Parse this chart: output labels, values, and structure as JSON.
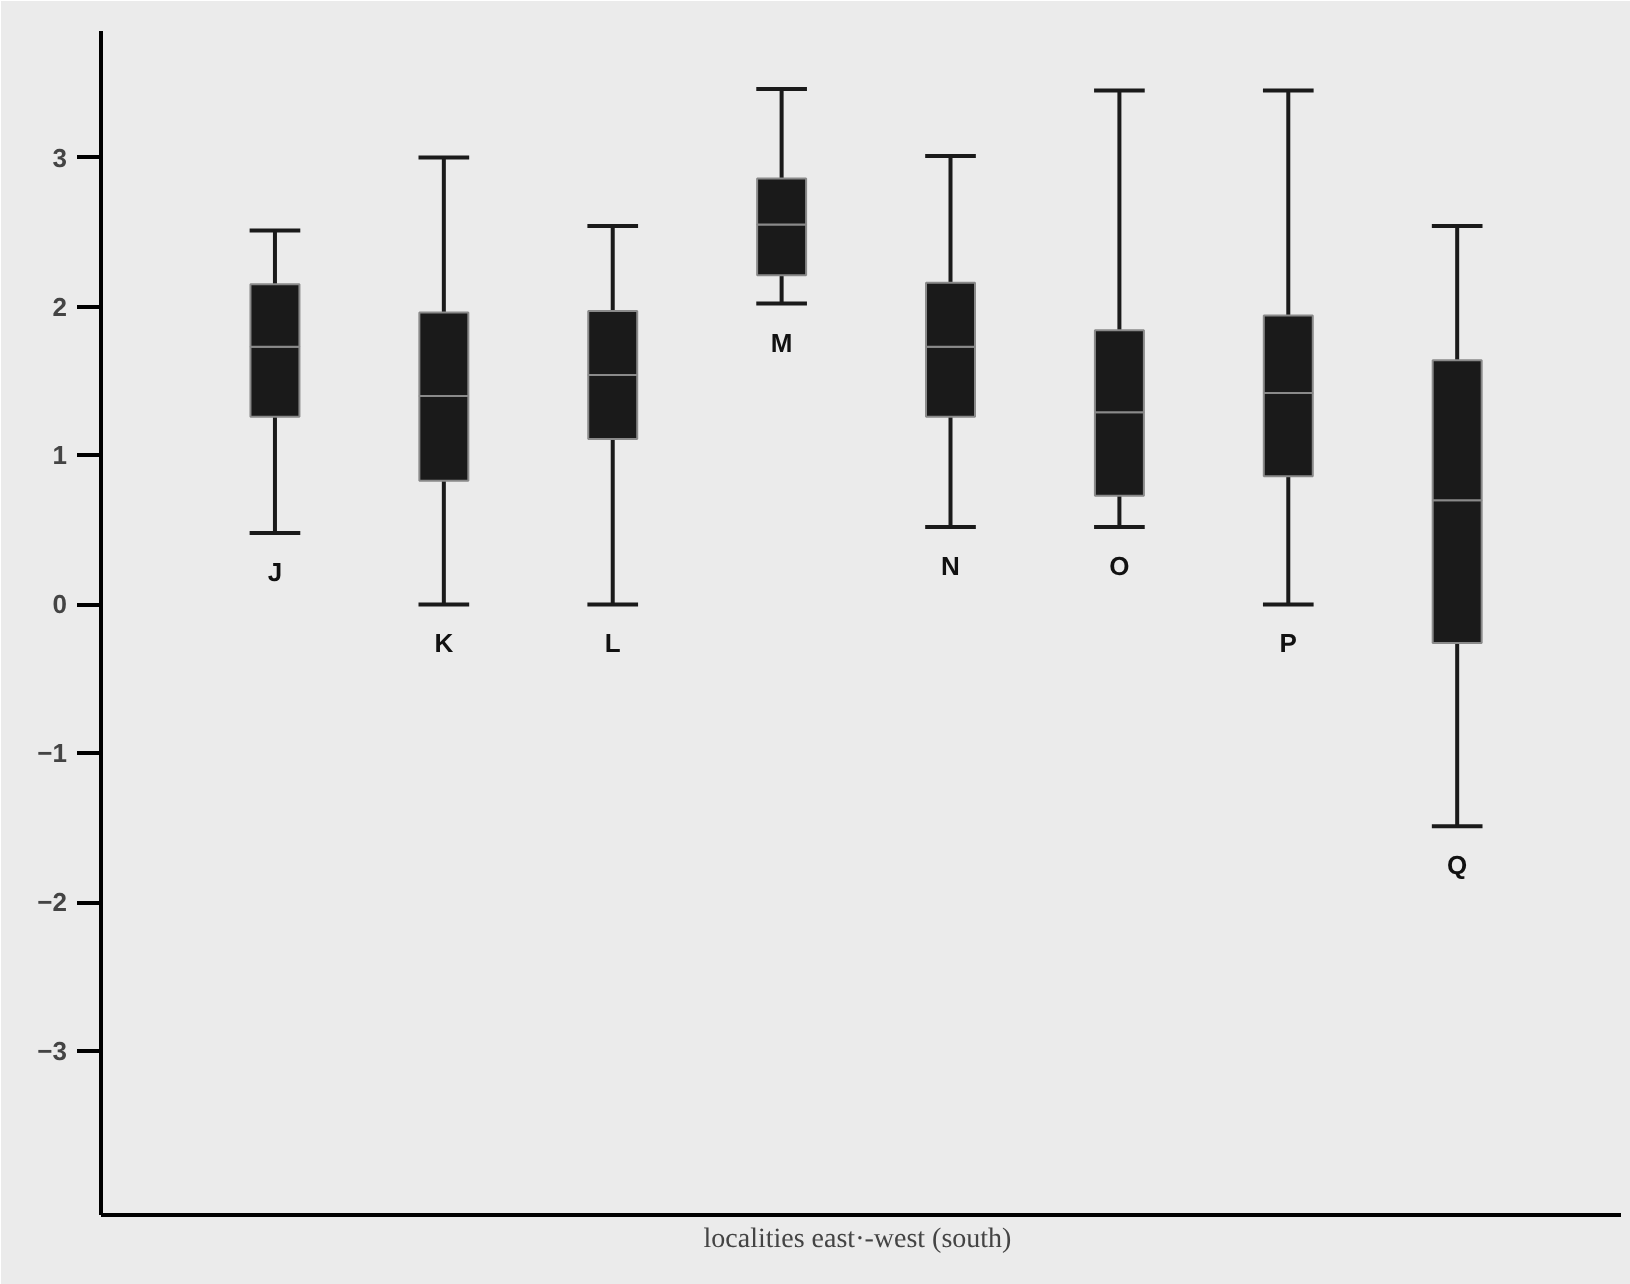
{
  "chart_data": {
    "type": "box",
    "xlabel": "localities east·-west  (south)",
    "categories": [
      "J",
      "K",
      "L",
      "M",
      "N",
      "O",
      "P",
      "Q"
    ],
    "color": "#1a1a1a",
    "grid": false,
    "ylim": [
      -4.1,
      3.85
    ],
    "yticks": [
      -3,
      -2,
      -1,
      0,
      1,
      2,
      3
    ],
    "boxes": [
      {
        "low": 0.48,
        "q1": 1.26,
        "median": 1.73,
        "q3": 2.15,
        "high": 2.51
      },
      {
        "low": 0,
        "q1": 0.83,
        "median": 1.4,
        "q3": 1.96,
        "high": 3.0
      },
      {
        "low": 0,
        "q1": 1.11,
        "median": 1.54,
        "q3": 1.97,
        "high": 2.54
      },
      {
        "low": 2.02,
        "q1": 2.21,
        "median": 2.55,
        "q3": 2.86,
        "high": 3.46
      },
      {
        "low": 0.52,
        "q1": 1.26,
        "median": 1.73,
        "q3": 2.16,
        "high": 3.01
      },
      {
        "low": 0.52,
        "q1": 0.73,
        "median": 1.29,
        "q3": 1.84,
        "high": 3.45
      },
      {
        "low": 0,
        "q1": 0.86,
        "median": 1.42,
        "q3": 1.94,
        "high": 3.45
      },
      {
        "low": -1.49,
        "q1": -0.26,
        "median": 0.7,
        "q3": 1.64,
        "high": 2.54
      }
    ]
  }
}
